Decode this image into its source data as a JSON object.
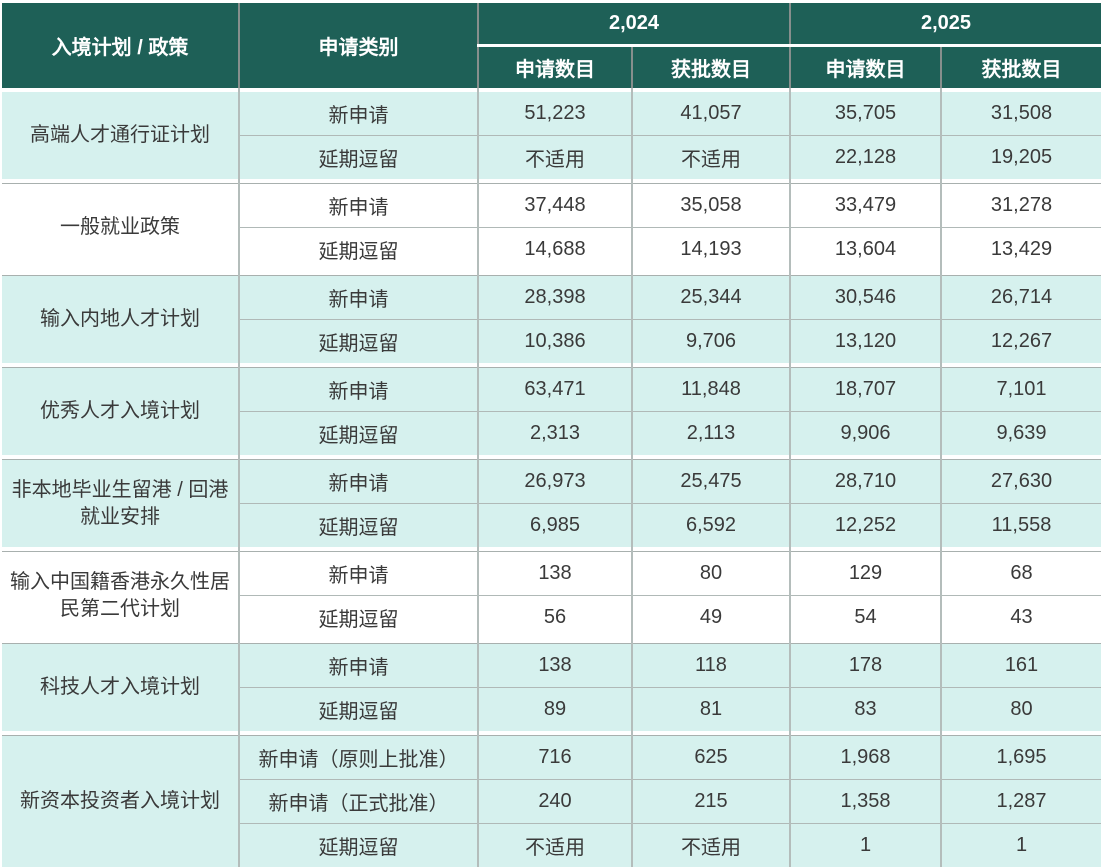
{
  "colors": {
    "header_bg": "#1E6057",
    "header_text": "#FFFFFF",
    "row_teal": "#D6F1EE",
    "row_white": "#FFFFFF",
    "body_text": "#3A3A3A",
    "grid_line": "#B0B9B7"
  },
  "header": {
    "scheme_col": "入境计划 / 政策",
    "category_col": "申请类别",
    "year_groups": [
      {
        "label": "2,024",
        "subcols": [
          "申请数目",
          "获批数目"
        ]
      },
      {
        "label": "2,025",
        "subcols": [
          "申请数目",
          "获批数目"
        ]
      }
    ]
  },
  "groups": [
    {
      "scheme": "高端人才通行证计划",
      "shade": "teal",
      "rows": [
        {
          "category": "新申请",
          "values": [
            "51,223",
            "41,057",
            "35,705",
            "31,508"
          ]
        },
        {
          "category": "延期逗留",
          "values": [
            "不适用",
            "不适用",
            "22,128",
            "19,205"
          ]
        }
      ]
    },
    {
      "scheme": "一般就业政策",
      "shade": "white",
      "rows": [
        {
          "category": "新申请",
          "values": [
            "37,448",
            "35,058",
            "33,479",
            "31,278"
          ]
        },
        {
          "category": "延期逗留",
          "values": [
            "14,688",
            "14,193",
            "13,604",
            "13,429"
          ]
        }
      ]
    },
    {
      "scheme": "输入内地人才计划",
      "shade": "teal",
      "rows": [
        {
          "category": "新申请",
          "values": [
            "28,398",
            "25,344",
            "30,546",
            "26,714"
          ]
        },
        {
          "category": "延期逗留",
          "values": [
            "10,386",
            "9,706",
            "13,120",
            "12,267"
          ]
        }
      ]
    },
    {
      "scheme": "优秀人才入境计划",
      "shade": "teal",
      "rows": [
        {
          "category": "新申请",
          "values": [
            "63,471",
            "11,848",
            "18,707",
            "7,101"
          ]
        },
        {
          "category": "延期逗留",
          "values": [
            "2,313",
            "2,113",
            "9,906",
            "9,639"
          ]
        }
      ]
    },
    {
      "scheme": "非本地毕业生留港 / 回港就业安排",
      "shade": "teal",
      "rows": [
        {
          "category": "新申请",
          "values": [
            "26,973",
            "25,475",
            "28,710",
            "27,630"
          ]
        },
        {
          "category": "延期逗留",
          "values": [
            "6,985",
            "6,592",
            "12,252",
            "11,558"
          ]
        }
      ]
    },
    {
      "scheme": "输入中国籍香港永久性居民第二代计划",
      "shade": "white",
      "rows": [
        {
          "category": "新申请",
          "values": [
            "138",
            "80",
            "129",
            "68"
          ]
        },
        {
          "category": "延期逗留",
          "values": [
            "56",
            "49",
            "54",
            "43"
          ]
        }
      ]
    },
    {
      "scheme": "科技人才入境计划",
      "shade": "teal",
      "rows": [
        {
          "category": "新申请",
          "values": [
            "138",
            "118",
            "178",
            "161"
          ]
        },
        {
          "category": "延期逗留",
          "values": [
            "89",
            "81",
            "83",
            "80"
          ]
        }
      ]
    },
    {
      "scheme": "新资本投资者入境计划",
      "shade": "teal",
      "rows": [
        {
          "category": "新申请（原则上批准）",
          "values": [
            "716",
            "625",
            "1,968",
            "1,695"
          ]
        },
        {
          "category": "新申请（正式批准）",
          "values": [
            "240",
            "215",
            "1,358",
            "1,287"
          ]
        },
        {
          "category": "延期逗留",
          "values": [
            "不适用",
            "不适用",
            "1",
            "1"
          ]
        }
      ]
    }
  ]
}
